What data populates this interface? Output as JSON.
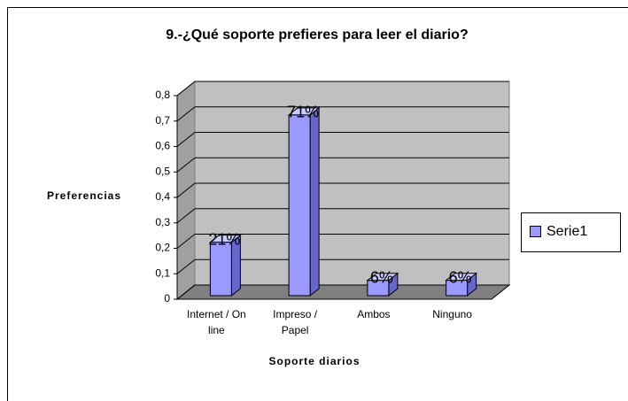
{
  "chart_data": {
    "type": "bar3d",
    "title": "9.-¿Qué soporte prefieres para leer el diario?",
    "y_label": "Preferencias",
    "x_label": "Soporte diarios",
    "categories": [
      "Internet / On line",
      "Impreso / Papel",
      "Ambos",
      "Ninguno"
    ],
    "series": [
      {
        "name": "Serie1",
        "color": "#9999ff",
        "values": [
          0.21,
          0.71,
          0.06,
          0.06
        ],
        "value_labels": [
          "21%",
          "71%",
          "6%",
          "6%"
        ]
      }
    ],
    "ylim": [
      0,
      0.8
    ],
    "yticks": [
      0,
      {
        "value": 0.1,
        "label": "0,1"
      },
      {
        "value": 0.2,
        "label": "0,2"
      },
      {
        "value": 0.3,
        "label": "0,3"
      },
      {
        "value": 0.4,
        "label": "0,4"
      },
      {
        "value": 0.5,
        "label": "0,5"
      },
      {
        "value": 0.6,
        "label": "0,6"
      },
      {
        "value": 0.7,
        "label": "0,7"
      },
      {
        "value": 0.8,
        "label": "0,8"
      }
    ],
    "grid": true,
    "legend": "right"
  }
}
